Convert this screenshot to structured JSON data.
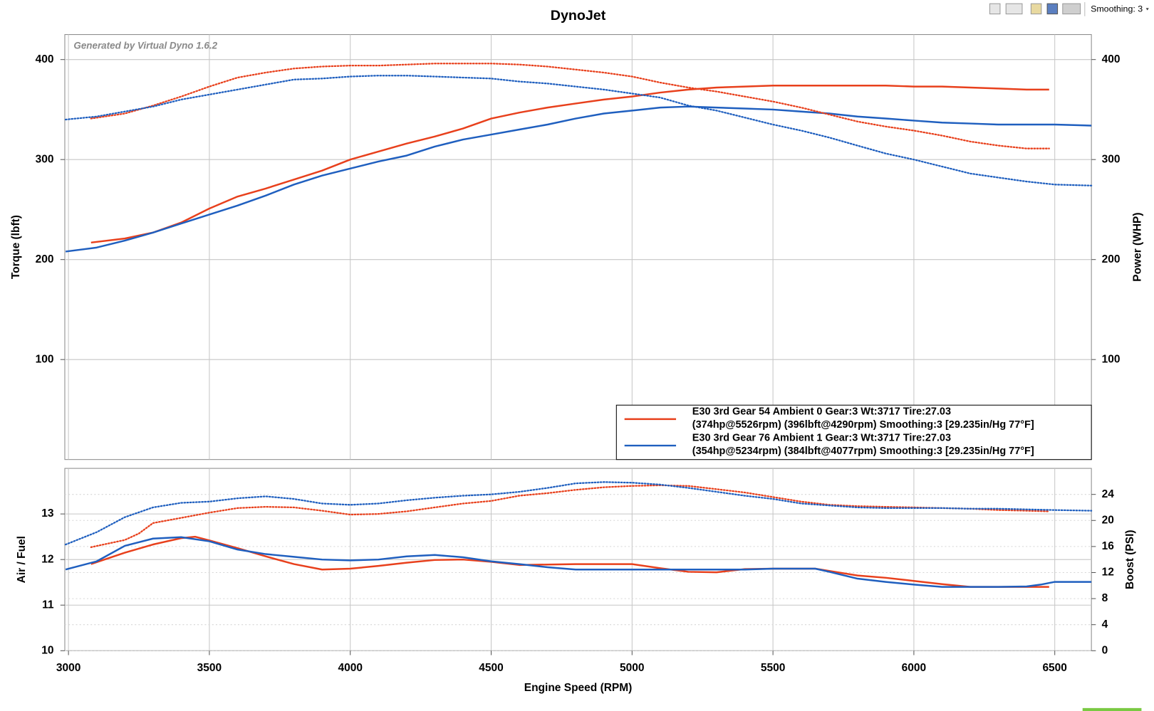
{
  "toolbar": {
    "smoothing": "Smoothing: 3"
  },
  "chart_data": [
    {
      "type": "line",
      "title": "DynoJet",
      "annotation": "Generated by Virtual Dyno 1.6.2",
      "ylabel": "Torque (lbft)",
      "y2label": "Power (WHP)",
      "xlim": [
        2987,
        6630
      ],
      "xticks": [
        3000,
        3500,
        4000,
        4500,
        5000,
        5500,
        6000,
        6500
      ],
      "ylim": [
        0,
        425
      ],
      "yticks": [
        100,
        200,
        300,
        400
      ],
      "y2lim": [
        0,
        425
      ],
      "y2ticks": [
        100,
        200,
        300,
        400
      ],
      "grid": true,
      "legend": [
        {
          "name": "E30 3rd Gear 54 Ambient 0 Gear:3 Wt:3717 Tire:27.03",
          "details": "(374hp@5526rpm) (396lbft@4290rpm) Smoothing:3 [29.235in/Hg 77°F]",
          "color": "#e8401c"
        },
        {
          "name": "E30 3rd Gear 76 Ambient 1 Gear:3 Wt:3717 Tire:27.03",
          "details": "(354hp@5234rpm) (384lbft@4077rpm) Smoothing:3 [29.235in/Hg 77°F]",
          "color": "#1f5fbf"
        }
      ],
      "series": [
        {
          "run": 0,
          "style": "solid",
          "axis": "y2",
          "x": [
            3080,
            3200,
            3300,
            3400,
            3500,
            3600,
            3700,
            3800,
            3900,
            4000,
            4100,
            4200,
            4300,
            4400,
            4500,
            4600,
            4700,
            4800,
            4900,
            5000,
            5100,
            5200,
            5300,
            5400,
            5500,
            5600,
            5700,
            5800,
            5900,
            6000,
            6100,
            6200,
            6300,
            6400,
            6480
          ],
          "values": [
            217,
            221,
            227,
            237,
            251,
            263,
            271,
            280,
            289,
            300,
            308,
            316,
            323,
            331,
            341,
            347,
            352,
            356,
            360,
            363,
            367,
            370,
            372,
            373,
            374,
            374,
            374,
            374,
            374,
            373,
            373,
            372,
            371,
            370,
            370
          ]
        },
        {
          "run": 1,
          "style": "solid",
          "axis": "y2",
          "x": [
            2990,
            3100,
            3200,
            3300,
            3400,
            3500,
            3600,
            3700,
            3800,
            3900,
            4000,
            4100,
            4200,
            4300,
            4400,
            4500,
            4600,
            4700,
            4800,
            4900,
            5000,
            5100,
            5200,
            5300,
            5400,
            5500,
            5600,
            5700,
            5800,
            5900,
            6000,
            6100,
            6200,
            6300,
            6400,
            6500,
            6630
          ],
          "values": [
            208,
            212,
            219,
            227,
            236,
            245,
            254,
            264,
            275,
            284,
            291,
            298,
            304,
            313,
            320,
            325,
            330,
            335,
            341,
            346,
            349,
            352,
            353,
            352,
            351,
            350,
            348,
            346,
            343,
            341,
            339,
            337,
            336,
            335,
            335,
            335,
            334
          ]
        },
        {
          "run": 0,
          "style": "dotted",
          "x": [
            3080,
            3200,
            3300,
            3400,
            3500,
            3600,
            3700,
            3800,
            3900,
            4000,
            4100,
            4200,
            4300,
            4400,
            4500,
            4600,
            4700,
            4800,
            4900,
            5000,
            5100,
            5200,
            5300,
            5400,
            5500,
            5600,
            5700,
            5800,
            5900,
            6000,
            6100,
            6200,
            6300,
            6400,
            6480
          ],
          "values": [
            341,
            346,
            354,
            363,
            373,
            382,
            387,
            391,
            393,
            394,
            394,
            395,
            396,
            396,
            396,
            395,
            393,
            390,
            387,
            383,
            377,
            372,
            368,
            363,
            358,
            352,
            345,
            338,
            333,
            329,
            324,
            318,
            314,
            311,
            311
          ]
        },
        {
          "run": 1,
          "style": "dotted",
          "x": [
            2990,
            3100,
            3200,
            3300,
            3400,
            3500,
            3600,
            3700,
            3800,
            3900,
            4000,
            4100,
            4200,
            4300,
            4400,
            4500,
            4600,
            4700,
            4800,
            4900,
            5000,
            5100,
            5200,
            5300,
            5400,
            5500,
            5600,
            5700,
            5800,
            5900,
            6000,
            6100,
            6200,
            6300,
            6400,
            6500,
            6630
          ],
          "values": [
            340,
            343,
            348,
            353,
            360,
            365,
            370,
            375,
            380,
            381,
            383,
            384,
            384,
            383,
            382,
            381,
            378,
            376,
            373,
            370,
            366,
            362,
            354,
            349,
            342,
            335,
            329,
            322,
            314,
            306,
            300,
            293,
            286,
            282,
            278,
            275,
            274
          ]
        }
      ]
    },
    {
      "type": "line",
      "xlabel": "Engine Speed (RPM)",
      "ylabel": "Air / Fuel",
      "y2label": "Boost (PSI)",
      "xlim": [
        2987,
        6630
      ],
      "xticks": [
        3000,
        3500,
        4000,
        4500,
        5000,
        5500,
        6000,
        6500
      ],
      "ylim": [
        10,
        14
      ],
      "yticks": [
        10,
        11,
        12,
        13
      ],
      "y2lim": [
        0,
        28
      ],
      "y2ticks": [
        0,
        4,
        8,
        12,
        16,
        20,
        24
      ],
      "grid": true,
      "series": [
        {
          "run": 0,
          "style": "solid",
          "x": [
            3080,
            3200,
            3300,
            3400,
            3450,
            3500,
            3600,
            3700,
            3800,
            3900,
            4000,
            4100,
            4200,
            4300,
            4400,
            4500,
            4600,
            4700,
            4800,
            4900,
            5000,
            5100,
            5200,
            5300,
            5400,
            5500,
            5600,
            5650,
            5700,
            5800,
            5900,
            6000,
            6100,
            6200,
            6300,
            6400,
            6480
          ],
          "values": [
            11.9,
            12.15,
            12.33,
            12.47,
            12.5,
            12.42,
            12.25,
            12.07,
            11.9,
            11.78,
            11.8,
            11.86,
            11.93,
            11.99,
            12.0,
            11.95,
            11.88,
            11.89,
            11.9,
            11.9,
            11.9,
            11.81,
            11.73,
            11.72,
            11.79,
            11.8,
            11.8,
            11.8,
            11.75,
            11.65,
            11.6,
            11.53,
            11.46,
            11.4,
            11.4,
            11.4,
            11.4
          ]
        },
        {
          "run": 1,
          "style": "solid",
          "x": [
            2990,
            3100,
            3200,
            3300,
            3400,
            3500,
            3600,
            3700,
            3800,
            3900,
            4000,
            4100,
            4200,
            4300,
            4400,
            4500,
            4600,
            4700,
            4800,
            4900,
            5000,
            5100,
            5200,
            5300,
            5400,
            5500,
            5600,
            5650,
            5700,
            5800,
            5900,
            6000,
            6100,
            6200,
            6300,
            6400,
            6450,
            6500,
            6630
          ],
          "values": [
            11.78,
            11.96,
            12.3,
            12.46,
            12.49,
            12.4,
            12.22,
            12.12,
            12.06,
            12.0,
            11.98,
            12.0,
            12.07,
            12.1,
            12.05,
            11.96,
            11.9,
            11.83,
            11.78,
            11.78,
            11.78,
            11.78,
            11.78,
            11.78,
            11.78,
            11.8,
            11.8,
            11.8,
            11.73,
            11.58,
            11.51,
            11.45,
            11.4,
            11.4,
            11.4,
            11.41,
            11.45,
            11.51,
            11.51
          ]
        },
        {
          "run": 0,
          "style": "dotted",
          "axis": "y2",
          "x": [
            3080,
            3200,
            3250,
            3300,
            3400,
            3500,
            3600,
            3700,
            3800,
            3900,
            4000,
            4100,
            4200,
            4300,
            4400,
            4500,
            4600,
            4700,
            4800,
            4900,
            5000,
            5100,
            5200,
            5300,
            5400,
            5500,
            5600,
            5700,
            5800,
            5900,
            6000,
            6100,
            6200,
            6300,
            6400,
            6480
          ],
          "values": [
            15.9,
            17.0,
            18.0,
            19.6,
            20.4,
            21.2,
            21.9,
            22.1,
            22.0,
            21.5,
            20.9,
            21.0,
            21.4,
            22.0,
            22.6,
            23.0,
            23.8,
            24.2,
            24.7,
            25.1,
            25.3,
            25.4,
            25.3,
            24.8,
            24.3,
            23.6,
            22.9,
            22.4,
            22.2,
            22.1,
            22.0,
            21.9,
            21.8,
            21.6,
            21.5,
            21.4
          ]
        },
        {
          "run": 1,
          "style": "dotted",
          "axis": "y2",
          "x": [
            2990,
            3100,
            3200,
            3300,
            3400,
            3500,
            3600,
            3700,
            3800,
            3900,
            4000,
            4100,
            4200,
            4300,
            4400,
            4500,
            4600,
            4700,
            4800,
            4900,
            5000,
            5100,
            5200,
            5300,
            5400,
            5500,
            5600,
            5700,
            5800,
            5900,
            6000,
            6100,
            6200,
            6300,
            6400,
            6500,
            6630
          ],
          "values": [
            16.3,
            18.2,
            20.5,
            22.0,
            22.7,
            22.9,
            23.4,
            23.7,
            23.3,
            22.6,
            22.4,
            22.6,
            23.1,
            23.5,
            23.8,
            24.0,
            24.4,
            25.0,
            25.7,
            25.9,
            25.8,
            25.5,
            25.0,
            24.4,
            23.8,
            23.3,
            22.6,
            22.3,
            22.0,
            21.9,
            21.9,
            21.9,
            21.8,
            21.8,
            21.7,
            21.6,
            21.5
          ]
        }
      ]
    }
  ]
}
